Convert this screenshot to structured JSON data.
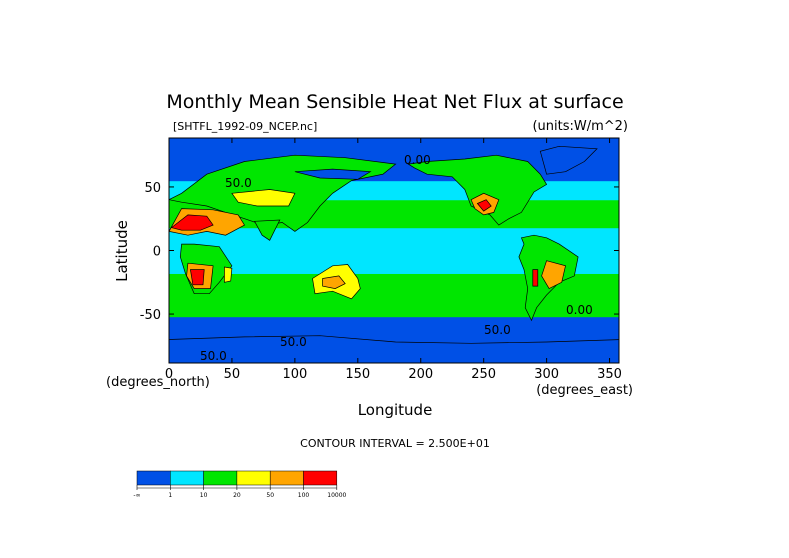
{
  "chart_data": {
    "type": "heatmap",
    "title": "Monthly Mean Sensible Heat Net Flux at surface",
    "file_label": "[SHTFL_1992-09_NCEP.nc]",
    "units_label": "(units:W/m^2)",
    "xlabel": "Longitude",
    "ylabel": "Latitude",
    "x_unit_label": "(degrees_east)",
    "y_unit_label": "(degrees_north)",
    "xlim": [
      0,
      357.5
    ],
    "ylim": [
      -88.5,
      88.5
    ],
    "x_ticks": [
      0,
      50,
      100,
      150,
      200,
      250,
      300,
      350
    ],
    "y_ticks": [
      -50,
      0,
      50
    ],
    "contour_interval_label": "CONTOUR INTERVAL = 2.500E+01",
    "contour_labels": [
      "0.00",
      "50.0",
      "50.0",
      "50.0",
      "50.0"
    ],
    "legend": {
      "levels": [
        "-∞",
        "1",
        "10",
        "20",
        "50",
        "100",
        "10000"
      ],
      "colors": [
        "#0050e6",
        "#00e6ff",
        "#00e600",
        "#ffff00",
        "#ffa500",
        "#ff0000"
      ]
    },
    "ocean_bands": [
      {
        "lat": [
          -90,
          -62
        ],
        "level": 0
      },
      {
        "lat": [
          -62,
          -52
        ],
        "level": 0
      },
      {
        "lat": [
          -52,
          -40
        ],
        "level": 2
      },
      {
        "lat": [
          -40,
          -18
        ],
        "level": 2
      },
      {
        "lat": [
          -18,
          18
        ],
        "level": 1
      },
      {
        "lat": [
          18,
          40
        ],
        "level": 2
      },
      {
        "lat": [
          40,
          55
        ],
        "level": 1
      },
      {
        "lat": [
          55,
          90
        ],
        "level": 0
      }
    ],
    "regions": [
      {
        "name": "North America",
        "level": 2,
        "poly": [
          [
            190,
            68
          ],
          [
            205,
            70
          ],
          [
            235,
            72
          ],
          [
            260,
            75
          ],
          [
            285,
            70
          ],
          [
            295,
            60
          ],
          [
            300,
            52
          ],
          [
            290,
            46
          ],
          [
            280,
            30
          ],
          [
            270,
            25
          ],
          [
            262,
            20
          ],
          [
            255,
            28
          ],
          [
            240,
            35
          ],
          [
            235,
            48
          ],
          [
            225,
            58
          ],
          [
            205,
            60
          ],
          [
            195,
            65
          ]
        ]
      },
      {
        "name": "US Southwest",
        "level": 4,
        "poly": [
          [
            240,
            40
          ],
          [
            250,
            45
          ],
          [
            262,
            40
          ],
          [
            258,
            30
          ],
          [
            250,
            28
          ],
          [
            243,
            33
          ]
        ]
      },
      {
        "name": "US Southwest core",
        "level": 5,
        "poly": [
          [
            245,
            37
          ],
          [
            252,
            40
          ],
          [
            256,
            35
          ],
          [
            250,
            31
          ]
        ]
      },
      {
        "name": "Greenland",
        "level": 0,
        "poly": [
          [
            300,
            60
          ],
          [
            315,
            62
          ],
          [
            330,
            70
          ],
          [
            340,
            80
          ],
          [
            310,
            82
          ],
          [
            295,
            78
          ]
        ]
      },
      {
        "name": "South America",
        "level": 2,
        "poly": [
          [
            280,
            10
          ],
          [
            290,
            12
          ],
          [
            300,
            10
          ],
          [
            310,
            5
          ],
          [
            325,
            -5
          ],
          [
            322,
            -20
          ],
          [
            310,
            -25
          ],
          [
            300,
            -35
          ],
          [
            292,
            -45
          ],
          [
            288,
            -55
          ],
          [
            283,
            -45
          ],
          [
            285,
            -30
          ],
          [
            282,
            -15
          ],
          [
            278,
            -5
          ],
          [
            282,
            5
          ]
        ]
      },
      {
        "name": "South America central",
        "level": 4,
        "poly": [
          [
            300,
            -8
          ],
          [
            315,
            -12
          ],
          [
            312,
            -25
          ],
          [
            302,
            -30
          ],
          [
            296,
            -20
          ]
        ]
      },
      {
        "name": "Atacama",
        "level": 5,
        "poly": [
          [
            289,
            -15
          ],
          [
            293,
            -15
          ],
          [
            293,
            -28
          ],
          [
            289,
            -28
          ]
        ]
      },
      {
        "name": "Europe and Asia",
        "level": 2,
        "poly": [
          [
            0,
            40
          ],
          [
            10,
            45
          ],
          [
            30,
            60
          ],
          [
            60,
            70
          ],
          [
            100,
            75
          ],
          [
            140,
            73
          ],
          [
            180,
            68
          ],
          [
            170,
            60
          ],
          [
            145,
            55
          ],
          [
            130,
            45
          ],
          [
            120,
            35
          ],
          [
            110,
            22
          ],
          [
            100,
            15
          ],
          [
            90,
            22
          ],
          [
            75,
            20
          ],
          [
            60,
            25
          ],
          [
            45,
            30
          ],
          [
            30,
            35
          ],
          [
            10,
            38
          ]
        ]
      },
      {
        "name": "Central Asia",
        "level": 3,
        "poly": [
          [
            50,
            45
          ],
          [
            80,
            48
          ],
          [
            100,
            45
          ],
          [
            95,
            35
          ],
          [
            70,
            35
          ],
          [
            55,
            38
          ]
        ]
      },
      {
        "name": "Siberia",
        "level": 0,
        "poly": [
          [
            100,
            62
          ],
          [
            130,
            64
          ],
          [
            160,
            62
          ],
          [
            150,
            56
          ],
          [
            120,
            57
          ]
        ]
      },
      {
        "name": "Sahara and Arabia",
        "level": 4,
        "poly": [
          [
            0,
            15
          ],
          [
            10,
            33
          ],
          [
            35,
            32
          ],
          [
            55,
            28
          ],
          [
            60,
            20
          ],
          [
            45,
            12
          ],
          [
            30,
            15
          ],
          [
            15,
            12
          ]
        ]
      },
      {
        "name": "Sahara core",
        "level": 5,
        "poly": [
          [
            2,
            18
          ],
          [
            15,
            28
          ],
          [
            30,
            27
          ],
          [
            35,
            20
          ],
          [
            25,
            16
          ],
          [
            10,
            16
          ]
        ]
      },
      {
        "name": "Africa south",
        "level": 2,
        "poly": [
          [
            10,
            5
          ],
          [
            20,
            5
          ],
          [
            40,
            3
          ],
          [
            50,
            -12
          ],
          [
            40,
            -25
          ],
          [
            32,
            -34
          ],
          [
            20,
            -34
          ],
          [
            13,
            -18
          ],
          [
            9,
            -5
          ]
        ]
      },
      {
        "name": "Kalahari",
        "level": 4,
        "poly": [
          [
            15,
            -10
          ],
          [
            35,
            -12
          ],
          [
            33,
            -30
          ],
          [
            20,
            -30
          ],
          [
            14,
            -20
          ]
        ]
      },
      {
        "name": "Kalahari core",
        "level": 5,
        "poly": [
          [
            17,
            -15
          ],
          [
            28,
            -15
          ],
          [
            27,
            -27
          ],
          [
            19,
            -27
          ]
        ]
      },
      {
        "name": "Madagascar",
        "level": 3,
        "poly": [
          [
            44,
            -13
          ],
          [
            50,
            -14
          ],
          [
            49,
            -24
          ],
          [
            44,
            -25
          ]
        ]
      },
      {
        "name": "India",
        "level": 2,
        "poly": [
          [
            68,
            23
          ],
          [
            88,
            24
          ],
          [
            80,
            8
          ],
          [
            74,
            12
          ]
        ]
      },
      {
        "name": "Australia",
        "level": 3,
        "poly": [
          [
            114,
            -22
          ],
          [
            130,
            -12
          ],
          [
            142,
            -11
          ],
          [
            150,
            -22
          ],
          [
            152,
            -30
          ],
          [
            145,
            -38
          ],
          [
            130,
            -32
          ],
          [
            116,
            -34
          ]
        ]
      },
      {
        "name": "Australia interior",
        "level": 4,
        "poly": [
          [
            122,
            -22
          ],
          [
            135,
            -20
          ],
          [
            140,
            -26
          ],
          [
            132,
            -30
          ],
          [
            122,
            -28
          ]
        ]
      },
      {
        "name": "Antarctica",
        "level": 0,
        "poly": [
          [
            0,
            -70
          ],
          [
            60,
            -68
          ],
          [
            120,
            -67
          ],
          [
            180,
            -72
          ],
          [
            240,
            -73
          ],
          [
            300,
            -72
          ],
          [
            360,
            -70
          ],
          [
            360,
            -90
          ],
          [
            0,
            -90
          ]
        ]
      }
    ]
  }
}
